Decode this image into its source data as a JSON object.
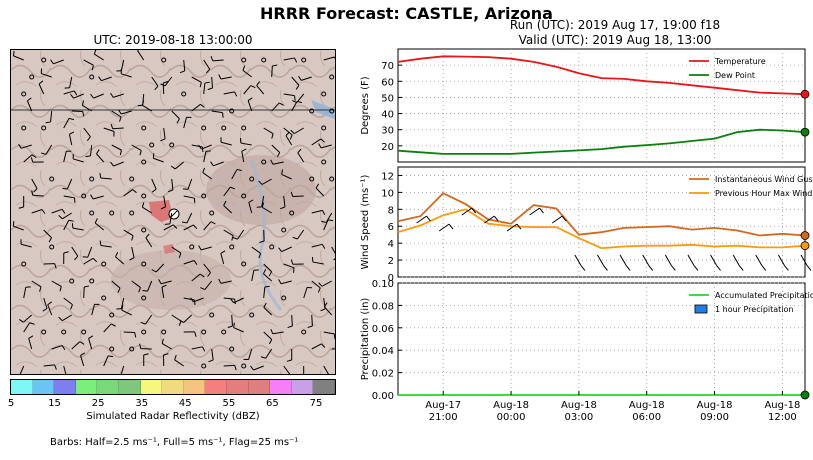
{
  "title": "HRRR Forecast: CASTLE, Arizona",
  "map": {
    "title": "UTC: 2019-08-18 13:00:00",
    "colorbar": {
      "colors": [
        "#7ef7f7",
        "#6cc4f5",
        "#7e7ef0",
        "#7af07a",
        "#79d879",
        "#7ec87e",
        "#f7f77e",
        "#f0dc7e",
        "#f5c57e",
        "#f57e7e",
        "#e37e7e",
        "#df7e7e",
        "#f77ef7",
        "#c8a0e6",
        "#808080"
      ],
      "ticks": [
        "5",
        "15",
        "25",
        "35",
        "45",
        "55",
        "65",
        "75"
      ],
      "label": "Simulated Radar Reflectivity (dBZ)"
    },
    "barbs_legend": "Barbs: Half=2.5 ms⁻¹, Full=5 ms⁻¹, Flag=25 ms⁻¹"
  },
  "run": {
    "line1": "Run (UTC): 2019 Aug 17, 19:00 f18",
    "line2": "Valid (UTC): 2019 Aug 18, 13:00"
  },
  "chart_data": [
    {
      "type": "line",
      "ylabel": "Degrees (F)",
      "ylim": [
        10,
        80
      ],
      "yticks": [
        20,
        30,
        40,
        50,
        60,
        70
      ],
      "x_hours_utc": [
        "2019-08-17 19:00",
        "2019-08-17 20:00",
        "2019-08-17 21:00",
        "2019-08-17 22:00",
        "2019-08-17 23:00",
        "2019-08-18 00:00",
        "2019-08-18 01:00",
        "2019-08-18 02:00",
        "2019-08-18 03:00",
        "2019-08-18 04:00",
        "2019-08-18 05:00",
        "2019-08-18 06:00",
        "2019-08-18 07:00",
        "2019-08-18 08:00",
        "2019-08-18 09:00",
        "2019-08-18 10:00",
        "2019-08-18 11:00",
        "2019-08-18 12:00",
        "2019-08-18 13:00"
      ],
      "series": [
        {
          "name": "Temperature",
          "color": "#e8151a",
          "values": [
            72,
            74,
            75.5,
            75.3,
            75,
            74,
            72,
            69,
            65,
            62,
            61.5,
            60,
            59,
            57.5,
            56,
            54.5,
            53,
            52.5,
            52
          ]
        },
        {
          "name": "Dew Point",
          "color": "#0a7f0a",
          "values": [
            17,
            16,
            15,
            15,
            15,
            15,
            15.8,
            16.5,
            17.2,
            18,
            19.5,
            20.5,
            21.5,
            23,
            24.5,
            28.5,
            30,
            29.5,
            28.5
          ]
        }
      ],
      "legend": "top-right",
      "grid": true
    },
    {
      "type": "line",
      "ylabel": "Wind Speed (ms⁻¹)",
      "ylim": [
        0,
        13
      ],
      "yticks": [
        0,
        2,
        4,
        6,
        8,
        10,
        12
      ],
      "series": [
        {
          "name": "Instantaneous Wind Gust",
          "color": "#d2691e",
          "values": [
            6.6,
            7.2,
            9.9,
            8.6,
            6.8,
            6.3,
            8.5,
            8.1,
            5.0,
            5.3,
            5.8,
            5.9,
            6.0,
            5.6,
            5.8,
            5.5,
            4.9,
            5.1,
            4.9
          ]
        },
        {
          "name": "Previous Hour Max Wind",
          "color": "#ff9a0a",
          "values": [
            5.3,
            6.1,
            7.3,
            8.0,
            6.3,
            6.0,
            5.9,
            5.9,
            4.6,
            3.4,
            3.6,
            3.7,
            3.7,
            3.8,
            3.6,
            3.7,
            3.5,
            3.5,
            3.7
          ]
        }
      ],
      "legend": "top-right",
      "grid": true
    },
    {
      "type": "bar",
      "ylabel": "Precipitation (in)",
      "ylim": [
        0,
        0.1
      ],
      "yticks": [
        "0.00",
        "0.02",
        "0.04",
        "0.06",
        "0.08",
        "0.10"
      ],
      "series": [
        {
          "name": "Accumulated Precipitation",
          "color": "#2ad12a",
          "values": [
            0,
            0,
            0,
            0,
            0,
            0,
            0,
            0,
            0,
            0,
            0,
            0,
            0,
            0,
            0,
            0,
            0,
            0,
            0
          ]
        },
        {
          "name": "1 hour Precipitation",
          "color": "#1f7fe6",
          "values": [
            0,
            0,
            0,
            0,
            0,
            0,
            0,
            0,
            0,
            0,
            0,
            0,
            0,
            0,
            0,
            0,
            0,
            0,
            0
          ]
        }
      ],
      "legend": "top-right",
      "grid": true,
      "xtick_labels": [
        [
          "Aug-17",
          "21:00"
        ],
        [
          "Aug-18",
          "00:00"
        ],
        [
          "Aug-18",
          "03:00"
        ],
        [
          "Aug-18",
          "06:00"
        ],
        [
          "Aug-18",
          "09:00"
        ],
        [
          "Aug-18",
          "12:00"
        ]
      ]
    }
  ]
}
